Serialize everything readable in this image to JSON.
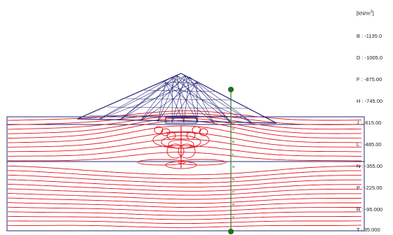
{
  "legend": {
    "unit_prefix": "[kN/m",
    "unit_sup": "2",
    "unit_suffix": "]",
    "entries": [
      {
        "label": "B : -1135.0"
      },
      {
        "label": "D : -1005.0"
      },
      {
        "label": "F : -875.00"
      },
      {
        "label": "H : -745.00"
      },
      {
        "label": "J : -615.00"
      },
      {
        "label": "L : -485.00"
      },
      {
        "label": "N : -355.00"
      },
      {
        "label": "P : -225.00"
      },
      {
        "label": "R : -95.000"
      },
      {
        "label": "T : 35.000"
      }
    ]
  },
  "section_line_tick_labels": [
    "D",
    "B",
    "L",
    "N",
    "N",
    "P",
    "R",
    "S"
  ],
  "colors": {
    "mesh": "#27277a",
    "contour": "#e0141e",
    "section_line": "#2e7d1f",
    "section_marker": "#1f6f1f",
    "background": "#ffffff"
  }
}
